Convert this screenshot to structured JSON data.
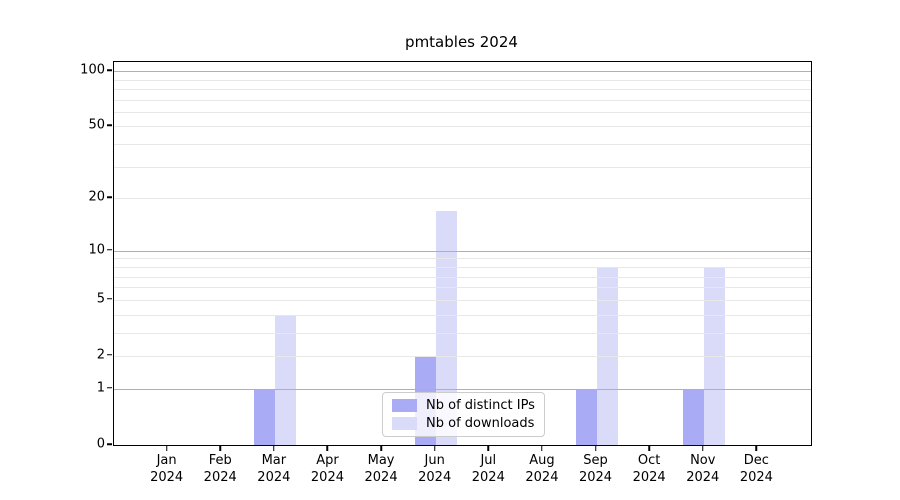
{
  "title": "pmtables 2024",
  "legend": {
    "items": [
      {
        "label": "Nb of distinct IPs",
        "color": "#a9acf5"
      },
      {
        "label": "Nb of downloads",
        "color": "#d9dbf9"
      }
    ],
    "position": "lower center"
  },
  "chart_data": {
    "type": "bar",
    "title": "pmtables 2024",
    "categories": [
      "Jan",
      "Feb",
      "Mar",
      "Apr",
      "May",
      "Jun",
      "Jul",
      "Aug",
      "Sep",
      "Oct",
      "Nov",
      "Dec"
    ],
    "category_year": "2024",
    "series": [
      {
        "name": "Nb of distinct IPs",
        "color": "#a9acf5",
        "values": [
          0,
          0,
          1,
          0,
          0,
          2,
          0,
          0,
          1,
          0,
          1,
          0
        ]
      },
      {
        "name": "Nb of downloads",
        "color": "#d9dbf9",
        "values": [
          0,
          0,
          4,
          0,
          0,
          17,
          0,
          0,
          8,
          0,
          8,
          0
        ]
      }
    ],
    "xlabel": "",
    "ylabel": "",
    "yscale": "log1p",
    "ylim": [
      0,
      112
    ],
    "y_ticks": [
      0,
      1,
      2,
      5,
      10,
      20,
      50,
      100
    ],
    "y_major_gridlines": [
      1,
      10,
      100
    ],
    "y_minor_gridlines": [
      2,
      3,
      4,
      5,
      6,
      7,
      8,
      9,
      20,
      30,
      40,
      50,
      60,
      70,
      80,
      90
    ],
    "grid": true,
    "legend_position": "lower center"
  },
  "colors": {
    "background": "#ffffff",
    "axis": "#000000",
    "major_grid": "#b0b0b0",
    "minor_grid": "#e8e8e8",
    "bar_distinct_ips": "#a9acf5",
    "bar_downloads": "#d9dbf9"
  }
}
